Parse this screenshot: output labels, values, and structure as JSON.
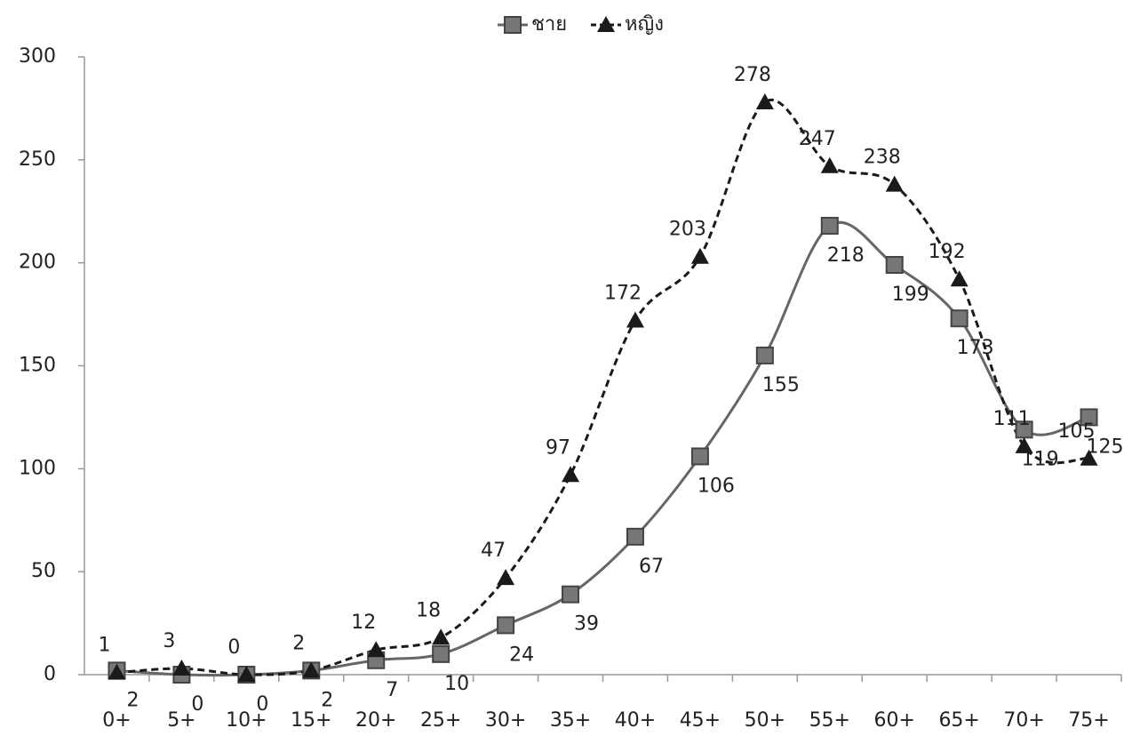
{
  "chart_data": {
    "type": "line",
    "categories": [
      "0+",
      "5+",
      "10+",
      "15+",
      "20+",
      "25+",
      "30+",
      "35+",
      "40+",
      "45+",
      "50+",
      "55+",
      "60+",
      "65+",
      "70+",
      "75+"
    ],
    "series": [
      {
        "name": "ชาย",
        "color": "#666666",
        "values": [
          2,
          0,
          0,
          2,
          7,
          10,
          24,
          39,
          67,
          106,
          155,
          218,
          199,
          173,
          119,
          125
        ]
      },
      {
        "name": "หญิง",
        "color": "#1a1a1a",
        "values": [
          1,
          3,
          0,
          2,
          12,
          18,
          47,
          97,
          172,
          203,
          278,
          247,
          238,
          192,
          111,
          105
        ]
      }
    ],
    "ylim": [
      0,
      300
    ],
    "yticks": [
      0,
      50,
      100,
      150,
      200,
      250,
      300
    ],
    "grid": false,
    "legend": "top"
  }
}
